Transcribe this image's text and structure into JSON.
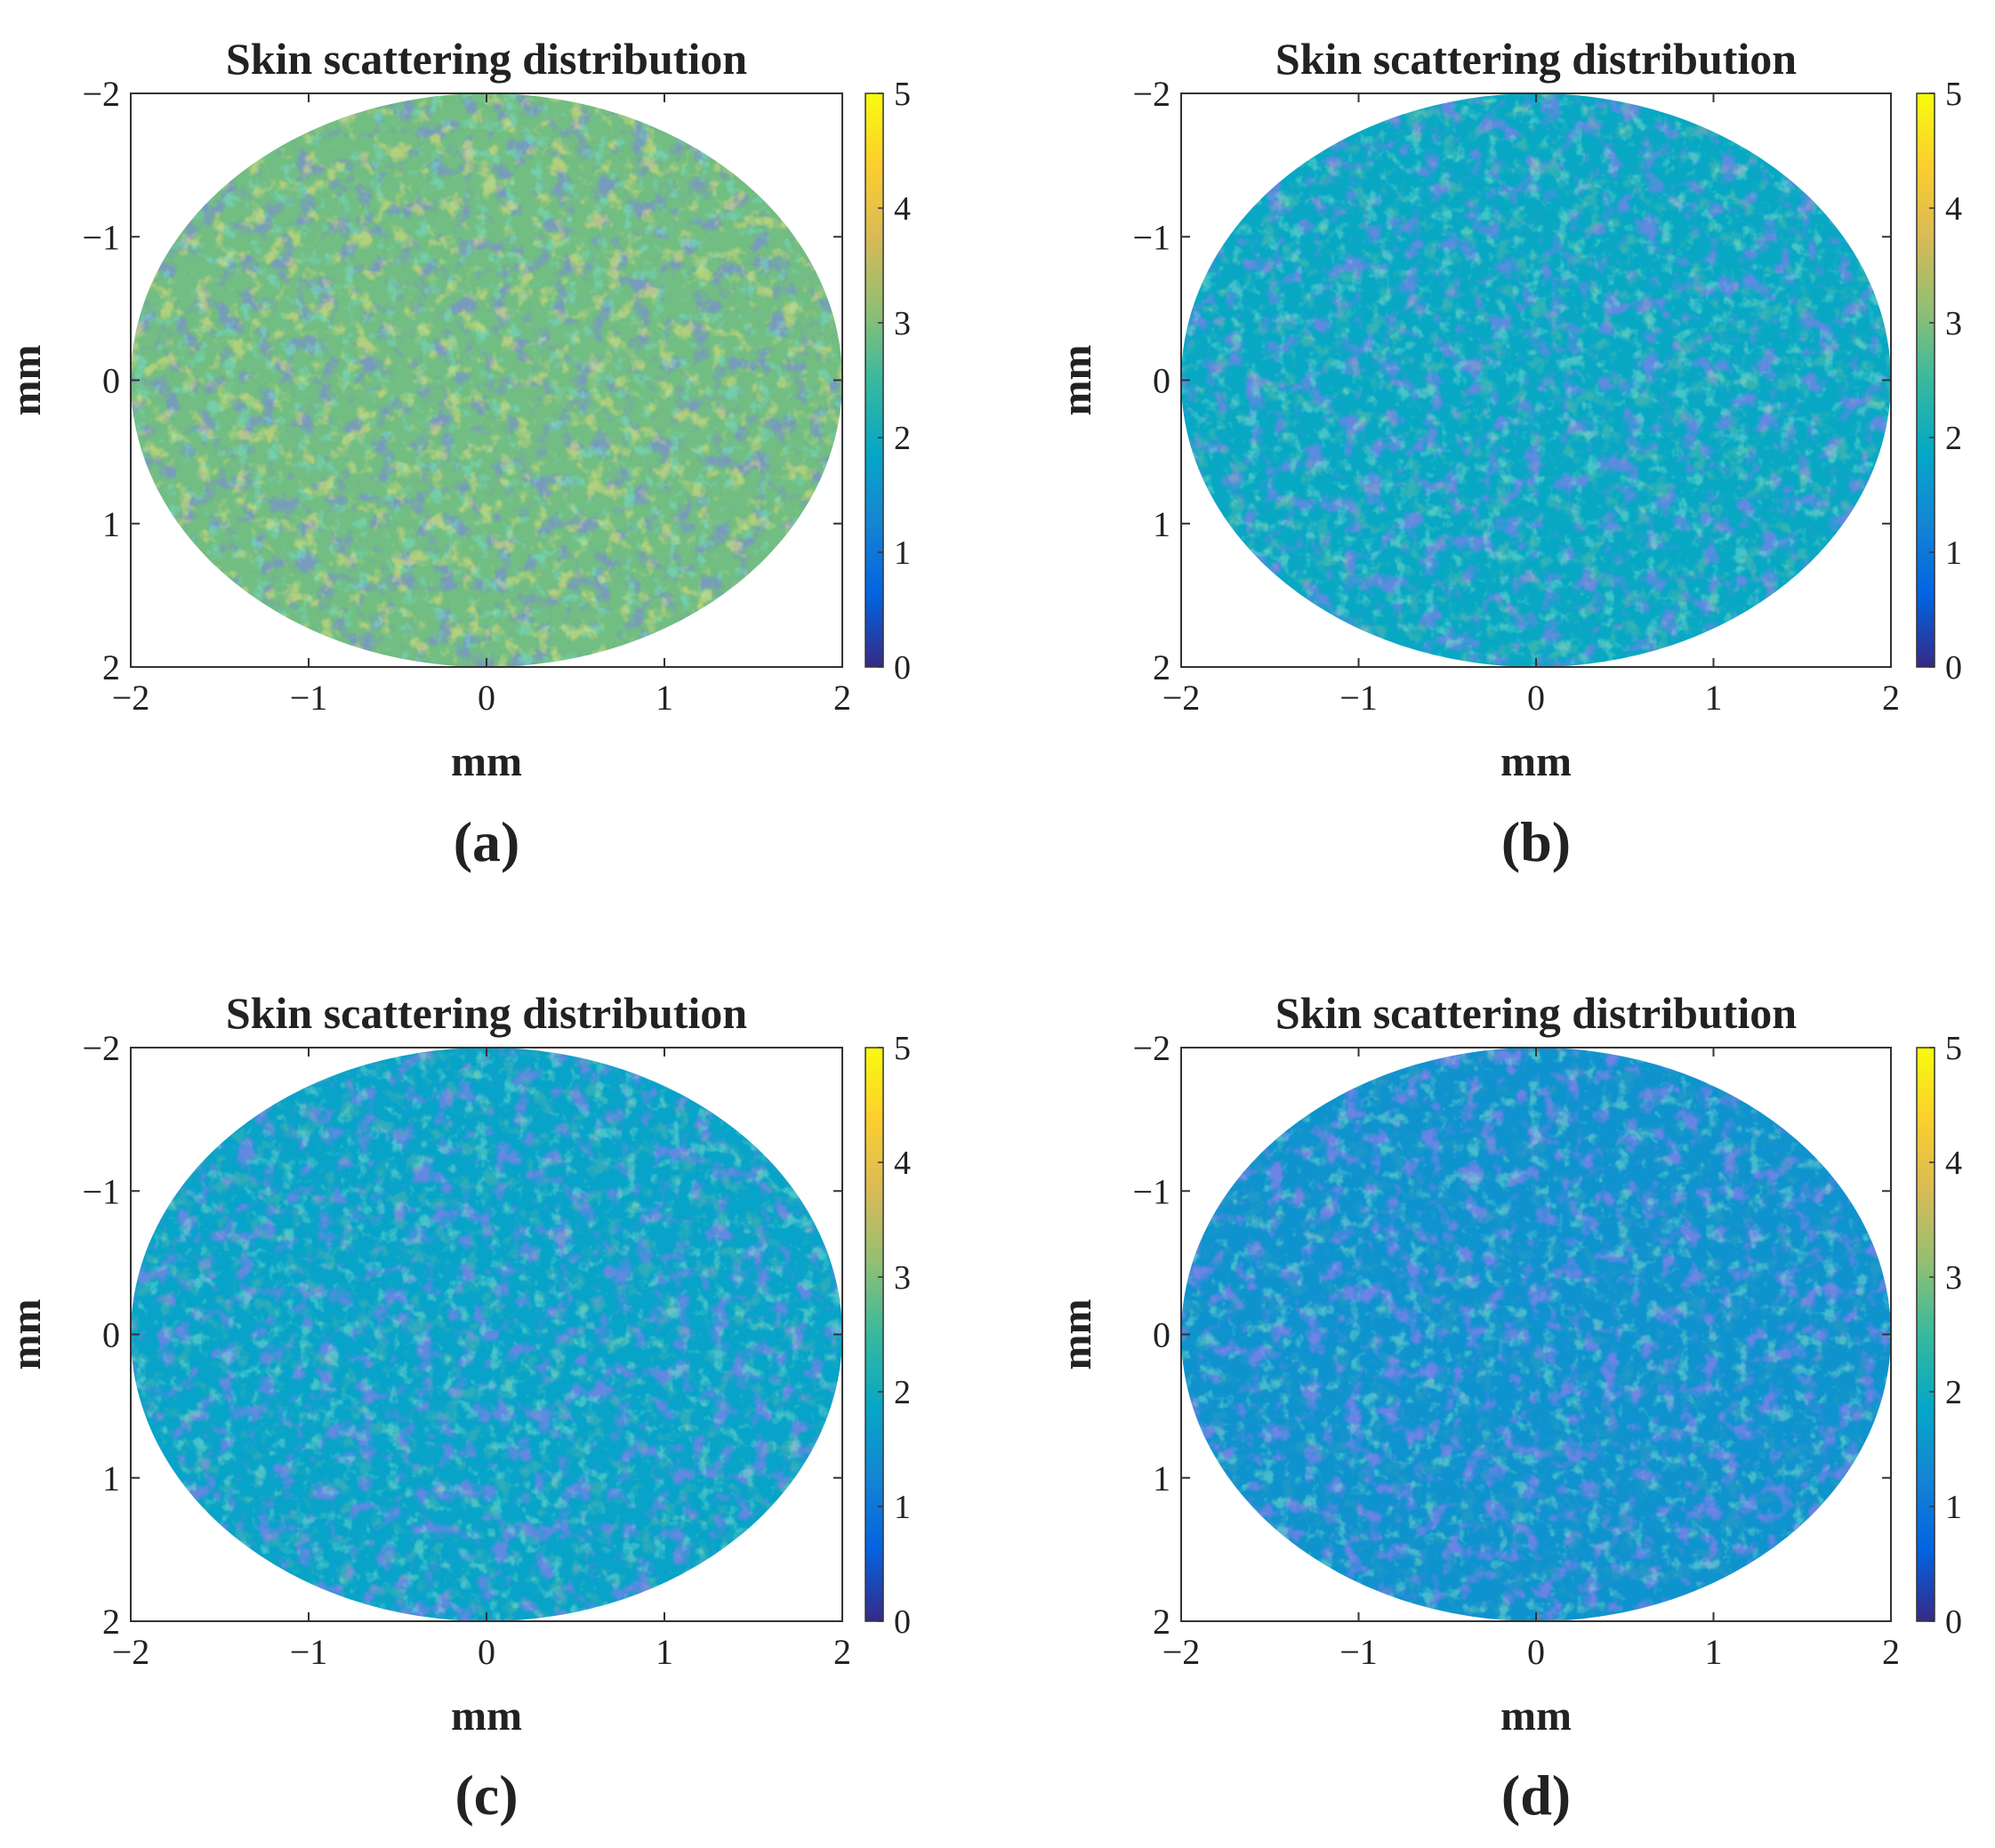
{
  "chart_data": [
    {
      "type": "heatmap",
      "title": "Skin scattering distribution",
      "xlabel": "mm",
      "ylabel": "mm",
      "xlim": [
        -2,
        2
      ],
      "ylim": [
        -2,
        2
      ],
      "y_axis_direction": "reversed",
      "x_ticks": [
        "−2",
        "−1",
        "0",
        "1",
        "2"
      ],
      "y_ticks": [
        "−2",
        "−1",
        "0",
        "1",
        "2"
      ],
      "colorbar": {
        "min": 0,
        "max": 5,
        "ticks": [
          "0",
          "1",
          "2",
          "3",
          "4",
          "5"
        ],
        "colormap": "parula"
      },
      "region": "circular aperture, radius 2 mm",
      "approx_mean": 2.9,
      "panel_label": "(a)"
    },
    {
      "type": "heatmap",
      "title": "Skin scattering distribution",
      "xlabel": "mm",
      "ylabel": "mm",
      "xlim": [
        -2,
        2
      ],
      "ylim": [
        -2,
        2
      ],
      "y_axis_direction": "reversed",
      "x_ticks": [
        "−2",
        "−1",
        "0",
        "1",
        "2"
      ],
      "y_ticks": [
        "−2",
        "−1",
        "0",
        "1",
        "2"
      ],
      "colorbar": {
        "min": 0,
        "max": 5,
        "ticks": [
          "0",
          "1",
          "2",
          "3",
          "4",
          "5"
        ],
        "colormap": "parula"
      },
      "region": "circular aperture, radius 2 mm",
      "approx_mean": 1.9,
      "panel_label": "(b)"
    },
    {
      "type": "heatmap",
      "title": "Skin scattering distribution",
      "xlabel": "mm",
      "ylabel": "mm",
      "xlim": [
        -2,
        2
      ],
      "ylim": [
        -2,
        2
      ],
      "y_axis_direction": "reversed",
      "x_ticks": [
        "−2",
        "−1",
        "0",
        "1",
        "2"
      ],
      "y_ticks": [
        "−2",
        "−1",
        "0",
        "1",
        "2"
      ],
      "colorbar": {
        "min": 0,
        "max": 5,
        "ticks": [
          "0",
          "1",
          "2",
          "3",
          "4",
          "5"
        ],
        "colormap": "parula"
      },
      "region": "circular aperture, radius 2 mm",
      "approx_mean": 1.8,
      "panel_label": "(c)"
    },
    {
      "type": "heatmap",
      "title": "Skin scattering distribution",
      "xlabel": "mm",
      "ylabel": "mm",
      "xlim": [
        -2,
        2
      ],
      "ylim": [
        -2,
        2
      ],
      "y_axis_direction": "reversed",
      "x_ticks": [
        "−2",
        "−1",
        "0",
        "1",
        "2"
      ],
      "y_ticks": [
        "−2",
        "−1",
        "0",
        "1",
        "2"
      ],
      "colorbar": {
        "min": 0,
        "max": 5,
        "ticks": [
          "0",
          "1",
          "2",
          "3",
          "4",
          "5"
        ],
        "colormap": "parula"
      },
      "region": "circular aperture, radius 2 mm",
      "approx_mean": 1.5,
      "panel_label": "(d)"
    }
  ]
}
